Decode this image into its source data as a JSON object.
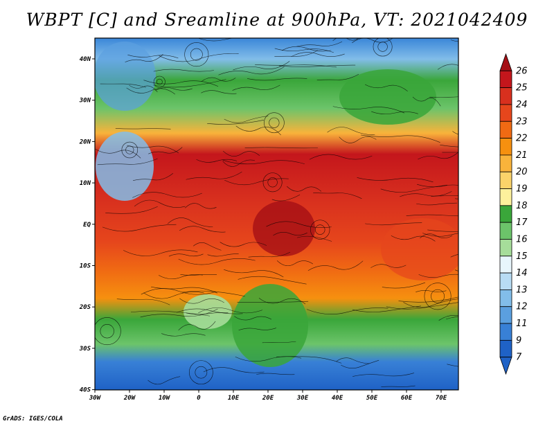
{
  "title": "WBPT [C] and Sreamline at 900hPa, VT: 2021042409",
  "footer": "GrADS: IGES/COLA",
  "x_ticks": [
    "30W",
    "20W",
    "10W",
    "0",
    "10E",
    "20E",
    "30E",
    "40E",
    "50E",
    "60E",
    "70E"
  ],
  "y_ticks": [
    "40N",
    "30N",
    "20N",
    "10N",
    "EQ",
    "10S",
    "20S",
    "30S",
    "40S"
  ],
  "colorbar": {
    "labels": [
      "26",
      "25",
      "24",
      "23",
      "22",
      "21",
      "20",
      "19",
      "18",
      "17",
      "16",
      "15",
      "14",
      "13",
      "12",
      "11",
      "9",
      "7"
    ],
    "colors": [
      "#a50f15",
      "#c4161c",
      "#d8301e",
      "#e6461c",
      "#f06a13",
      "#f6900f",
      "#f9b33b",
      "#fbd36a",
      "#fdf19c",
      "#3aa63a",
      "#6cc46a",
      "#a6dd9a",
      "#e8f6fc",
      "#b8dcf4",
      "#82bde9",
      "#5b9fdf",
      "#3880d6",
      "#1f62c6"
    ]
  },
  "chart_data": {
    "type": "heatmap",
    "title": "WBPT [C] and Sreamline at 900hPa, VT: 2021042409",
    "xlim": [
      -30,
      75
    ],
    "ylim": [
      -40,
      45
    ],
    "zones": [
      {
        "lat": 42,
        "value": 12
      },
      {
        "lat": 35,
        "value": 15
      },
      {
        "lat": 25,
        "value": 17
      },
      {
        "lat": 18,
        "value": 19
      },
      {
        "lat": 12,
        "value": 24
      },
      {
        "lat": 5,
        "value": 24
      },
      {
        "lat": 0,
        "value": 23
      },
      {
        "lat": -8,
        "value": 23
      },
      {
        "lat": -15,
        "value": 21
      },
      {
        "lat": -22,
        "value": 19
      },
      {
        "lat": -28,
        "value": 17
      },
      {
        "lat": -34,
        "value": 13
      },
      {
        "lat": -39,
        "value": 10
      }
    ]
  }
}
